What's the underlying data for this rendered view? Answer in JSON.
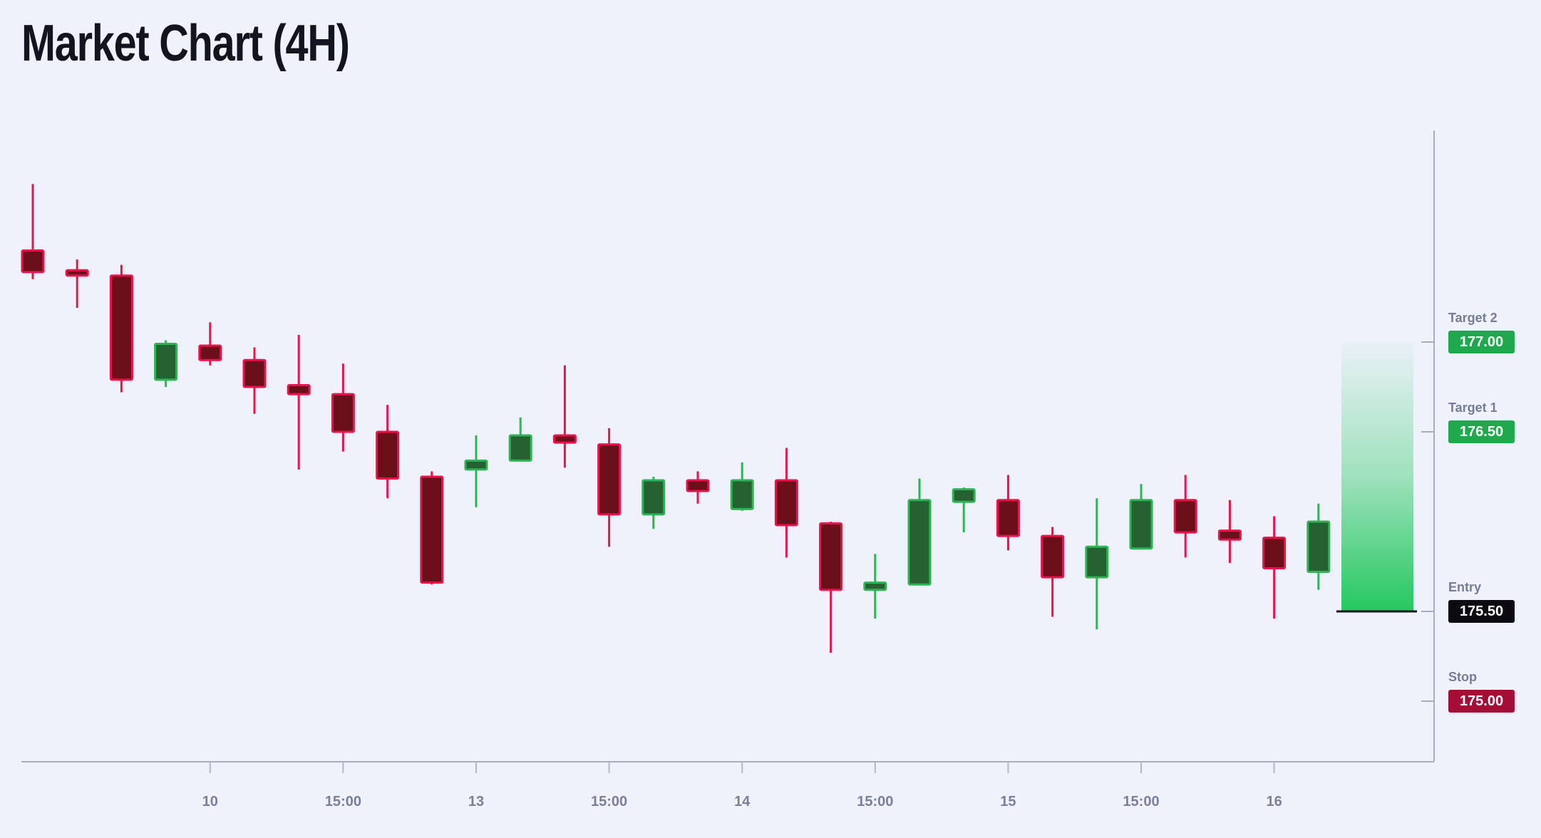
{
  "title": "Market Chart (4H)",
  "colors": {
    "background": "#eff2fb",
    "title_text": "#131420",
    "bull_body": "#266231",
    "bull_border": "#2eb456",
    "bear_body": "#6b0f1b",
    "bear_border": "#f0104c",
    "axis_line": "#a9adbb",
    "x_tick": "#b3b7c4",
    "x_tick_label": "#7b8099",
    "level_label": "#767c95",
    "badge_text": "#ffffff",
    "target_badge": "#20a84d",
    "entry_badge": "#0a0a10",
    "stop_badge": "#a50d36",
    "reward_zone": "#25c85f",
    "risk_zone": "#f4125c",
    "entry_line": "#15161e"
  },
  "chart_data": {
    "type": "candlestick",
    "title": "Market Chart (4H)",
    "interval": "4H",
    "ylim": [
      174.66,
      178.18
    ],
    "grid": false,
    "x_axis": {
      "labels": [
        "10",
        "15:00",
        "13",
        "15:00",
        "14",
        "15:00",
        "15",
        "15:00",
        "16"
      ],
      "label_candle_indices": [
        4,
        7,
        10,
        13,
        16,
        19,
        22,
        25,
        28
      ]
    },
    "candles": [
      {
        "o": 177.51,
        "h": 177.88,
        "l": 177.35,
        "c": 177.39
      },
      {
        "o": 177.4,
        "h": 177.46,
        "l": 177.19,
        "c": 177.37
      },
      {
        "o": 177.37,
        "h": 177.43,
        "l": 176.72,
        "c": 176.79
      },
      {
        "o": 176.79,
        "h": 177.01,
        "l": 176.75,
        "c": 176.99
      },
      {
        "o": 176.98,
        "h": 177.11,
        "l": 176.87,
        "c": 176.9
      },
      {
        "o": 176.9,
        "h": 176.97,
        "l": 176.6,
        "c": 176.75
      },
      {
        "o": 176.76,
        "h": 177.04,
        "l": 176.29,
        "c": 176.71
      },
      {
        "o": 176.71,
        "h": 176.88,
        "l": 176.39,
        "c": 176.5
      },
      {
        "o": 176.5,
        "h": 176.65,
        "l": 176.13,
        "c": 176.24
      },
      {
        "o": 176.25,
        "h": 176.28,
        "l": 175.65,
        "c": 175.66
      },
      {
        "o": 176.29,
        "h": 176.48,
        "l": 176.08,
        "c": 176.34
      },
      {
        "o": 176.34,
        "h": 176.58,
        "l": 176.34,
        "c": 176.48
      },
      {
        "o": 176.48,
        "h": 176.87,
        "l": 176.3,
        "c": 176.44
      },
      {
        "o": 176.43,
        "h": 176.52,
        "l": 175.86,
        "c": 176.04
      },
      {
        "o": 176.04,
        "h": 176.25,
        "l": 175.96,
        "c": 176.23
      },
      {
        "o": 176.23,
        "h": 176.28,
        "l": 176.1,
        "c": 176.17
      },
      {
        "o": 176.07,
        "h": 176.33,
        "l": 176.06,
        "c": 176.23
      },
      {
        "o": 176.23,
        "h": 176.41,
        "l": 175.8,
        "c": 175.98
      },
      {
        "o": 175.99,
        "h": 176.0,
        "l": 175.27,
        "c": 175.62
      },
      {
        "o": 175.62,
        "h": 175.82,
        "l": 175.46,
        "c": 175.66
      },
      {
        "o": 175.65,
        "h": 176.24,
        "l": 175.65,
        "c": 176.12
      },
      {
        "o": 176.11,
        "h": 176.19,
        "l": 175.94,
        "c": 176.18
      },
      {
        "o": 176.12,
        "h": 176.26,
        "l": 175.84,
        "c": 175.92
      },
      {
        "o": 175.92,
        "h": 175.97,
        "l": 175.47,
        "c": 175.69
      },
      {
        "o": 175.69,
        "h": 176.13,
        "l": 175.4,
        "c": 175.86
      },
      {
        "o": 175.85,
        "h": 176.21,
        "l": 175.85,
        "c": 176.12
      },
      {
        "o": 176.12,
        "h": 176.26,
        "l": 175.8,
        "c": 175.94
      },
      {
        "o": 175.95,
        "h": 176.12,
        "l": 175.77,
        "c": 175.9
      },
      {
        "o": 175.91,
        "h": 176.03,
        "l": 175.46,
        "c": 175.74
      },
      {
        "o": 175.72,
        "h": 176.1,
        "l": 175.62,
        "c": 176.0
      }
    ],
    "levels": [
      {
        "id": "target2",
        "label": "Target 2",
        "value": "177.00",
        "price": 177.0,
        "badge_color": "#20a84d"
      },
      {
        "id": "target1",
        "label": "Target 1",
        "value": "176.50",
        "price": 176.5,
        "badge_color": "#20a84d"
      },
      {
        "id": "entry",
        "label": "Entry",
        "value": "175.50",
        "price": 175.5,
        "badge_color": "#0a0a10"
      },
      {
        "id": "stop",
        "label": "Stop",
        "value": "175.00",
        "price": 175.0,
        "badge_color": "#a50d36"
      }
    ],
    "zones": {
      "reward": {
        "from": 175.5,
        "to": 177.0,
        "color": "#25c85f"
      },
      "risk": {
        "from": 175.0,
        "to": 175.5,
        "color": "#f4125c"
      }
    }
  }
}
